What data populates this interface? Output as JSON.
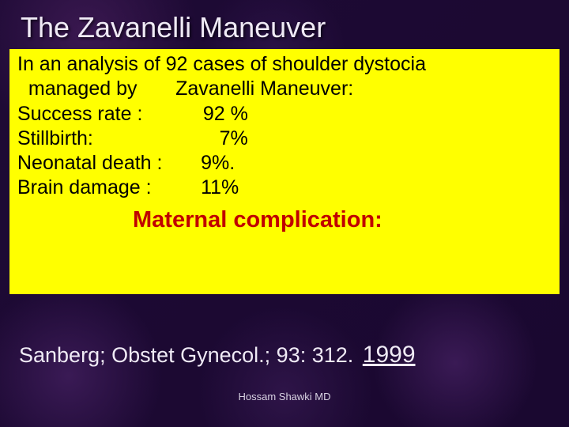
{
  "title": "The Zavanelli Maneuver",
  "intro_line1": "In an analysis of 92 cases of shoulder dystocia",
  "intro_line2": "  managed by       Zavanelli Maneuver:",
  "rows": [
    {
      "label": "Success rate :",
      "value": "92 %"
    },
    {
      "label": "Stillbirth:",
      "value": "  7%"
    },
    {
      "label": "Neonatal death :",
      "value": "9%."
    },
    {
      "label": "Brain damage :",
      "value": "11%"
    }
  ],
  "subheading": "Maternal complication:",
  "citation_text": "Sanberg; Obstet Gynecol.; 93: 312.",
  "citation_year": "1999",
  "author": "Hossam Shawki MD",
  "colors": {
    "highlight_bg": "#ffff00",
    "subheading_color": "#c00000",
    "title_color": "#efeaf5",
    "slide_bg": "#1a0a2e"
  },
  "typography": {
    "title_fontsize": 36,
    "body_fontsize": 25,
    "subheading_fontsize": 29,
    "citation_fontsize": 27,
    "author_fontsize": 13
  }
}
